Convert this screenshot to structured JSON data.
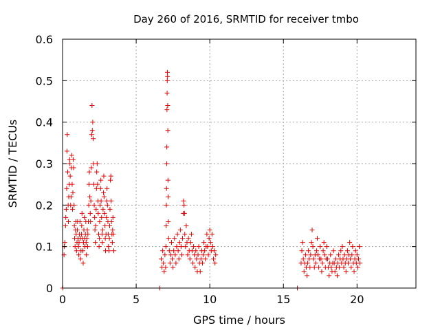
{
  "chart_data": {
    "type": "scatter",
    "title": "Day 260 of 2016, SRMTID for receiver tmbo",
    "xlabel": "GPS time / hours",
    "ylabel": "SRMTID / TECUs",
    "xlim": [
      0,
      24
    ],
    "ylim": [
      0,
      0.6
    ],
    "xticks": [
      0,
      5,
      10,
      15,
      20
    ],
    "yticks": [
      0,
      0.1,
      0.2,
      0.3,
      0.4,
      0.5,
      0.6
    ],
    "xtick_labels": [
      "0",
      "5",
      "10",
      "15",
      "20"
    ],
    "ytick_labels": [
      "0",
      "0.1",
      "0.2",
      "0.3",
      "0.4",
      "0.5",
      "0.6"
    ],
    "grid": true,
    "marker": "+",
    "series": [
      {
        "name": "SRMTID",
        "color": "#e00000",
        "points": [
          [
            0.02,
            0.0
          ],
          [
            6.6,
            0.0
          ],
          [
            15.95,
            0.0
          ],
          [
            0.1,
            0.08
          ],
          [
            0.12,
            0.1
          ],
          [
            0.15,
            0.11
          ],
          [
            0.2,
            0.15
          ],
          [
            0.22,
            0.17
          ],
          [
            0.25,
            0.19
          ],
          [
            0.28,
            0.24
          ],
          [
            0.3,
            0.33
          ],
          [
            0.32,
            0.37
          ],
          [
            0.35,
            0.28
          ],
          [
            0.38,
            0.2
          ],
          [
            0.4,
            0.16
          ],
          [
            0.42,
            0.22
          ],
          [
            0.45,
            0.25
          ],
          [
            0.48,
            0.31
          ],
          [
            0.5,
            0.3
          ],
          [
            0.52,
            0.27
          ],
          [
            0.55,
            0.2
          ],
          [
            0.58,
            0.22
          ],
          [
            0.6,
            0.29
          ],
          [
            0.62,
            0.32
          ],
          [
            0.65,
            0.25
          ],
          [
            0.68,
            0.19
          ],
          [
            0.7,
            0.23
          ],
          [
            0.72,
            0.31
          ],
          [
            0.75,
            0.29
          ],
          [
            0.78,
            0.2
          ],
          [
            0.8,
            0.15
          ],
          [
            0.82,
            0.12
          ],
          [
            0.85,
            0.1
          ],
          [
            0.88,
            0.14
          ],
          [
            0.9,
            0.16
          ],
          [
            0.92,
            0.13
          ],
          [
            0.95,
            0.09
          ],
          [
            0.98,
            0.11
          ],
          [
            1.0,
            0.14
          ],
          [
            1.02,
            0.16
          ],
          [
            1.05,
            0.12
          ],
          [
            1.08,
            0.1
          ],
          [
            1.1,
            0.08
          ],
          [
            1.12,
            0.11
          ],
          [
            1.15,
            0.13
          ],
          [
            1.18,
            0.16
          ],
          [
            1.2,
            0.12
          ],
          [
            1.22,
            0.07
          ],
          [
            1.25,
            0.09
          ],
          [
            1.28,
            0.13
          ],
          [
            1.3,
            0.15
          ],
          [
            1.32,
            0.18
          ],
          [
            1.35,
            0.12
          ],
          [
            1.38,
            0.09
          ],
          [
            1.4,
            0.06
          ],
          [
            1.42,
            0.11
          ],
          [
            1.45,
            0.14
          ],
          [
            1.48,
            0.17
          ],
          [
            1.5,
            0.12
          ],
          [
            1.52,
            0.1
          ],
          [
            1.55,
            0.13
          ],
          [
            1.58,
            0.16
          ],
          [
            1.6,
            0.11
          ],
          [
            1.62,
            0.08
          ],
          [
            1.65,
            0.12
          ],
          [
            1.68,
            0.14
          ],
          [
            1.7,
            0.1
          ],
          [
            1.72,
            0.13
          ],
          [
            1.75,
            0.16
          ],
          [
            1.78,
            0.2
          ],
          [
            1.8,
            0.25
          ],
          [
            1.82,
            0.28
          ],
          [
            1.85,
            0.22
          ],
          [
            1.88,
            0.18
          ],
          [
            1.9,
            0.16
          ],
          [
            1.92,
            0.21
          ],
          [
            1.95,
            0.29
          ],
          [
            1.98,
            0.37
          ],
          [
            2.0,
            0.44
          ],
          [
            2.02,
            0.38
          ],
          [
            2.05,
            0.4
          ],
          [
            2.08,
            0.36
          ],
          [
            2.1,
            0.3
          ],
          [
            2.12,
            0.25
          ],
          [
            2.15,
            0.2
          ],
          [
            2.18,
            0.17
          ],
          [
            2.2,
            0.14
          ],
          [
            2.22,
            0.11
          ],
          [
            2.25,
            0.15
          ],
          [
            2.28,
            0.19
          ],
          [
            2.3,
            0.24
          ],
          [
            2.32,
            0.28
          ],
          [
            2.35,
            0.3
          ],
          [
            2.38,
            0.25
          ],
          [
            2.4,
            0.21
          ],
          [
            2.42,
            0.18
          ],
          [
            2.45,
            0.13
          ],
          [
            2.48,
            0.1
          ],
          [
            2.5,
            0.12
          ],
          [
            2.52,
            0.16
          ],
          [
            2.55,
            0.2
          ],
          [
            2.58,
            0.24
          ],
          [
            2.6,
            0.26
          ],
          [
            2.62,
            0.21
          ],
          [
            2.65,
            0.17
          ],
          [
            2.68,
            0.13
          ],
          [
            2.7,
            0.11
          ],
          [
            2.72,
            0.14
          ],
          [
            2.75,
            0.19
          ],
          [
            2.78,
            0.23
          ],
          [
            2.8,
            0.27
          ],
          [
            2.82,
            0.22
          ],
          [
            2.85,
            0.18
          ],
          [
            2.88,
            0.15
          ],
          [
            2.9,
            0.12
          ],
          [
            2.92,
            0.09
          ],
          [
            2.95,
            0.13
          ],
          [
            2.98,
            0.17
          ],
          [
            3.0,
            0.21
          ],
          [
            3.02,
            0.24
          ],
          [
            3.05,
            0.2
          ],
          [
            3.08,
            0.16
          ],
          [
            3.1,
            0.13
          ],
          [
            3.12,
            0.1
          ],
          [
            3.15,
            0.09
          ],
          [
            3.18,
            0.12
          ],
          [
            3.2,
            0.15
          ],
          [
            3.22,
            0.19
          ],
          [
            3.25,
            0.26
          ],
          [
            3.28,
            0.27
          ],
          [
            3.3,
            0.21
          ],
          [
            3.32,
            0.16
          ],
          [
            3.35,
            0.13
          ],
          [
            3.38,
            0.11
          ],
          [
            3.4,
            0.14
          ],
          [
            3.42,
            0.17
          ],
          [
            3.45,
            0.13
          ],
          [
            3.48,
            0.09
          ],
          [
            6.7,
            0.07
          ],
          [
            6.75,
            0.05
          ],
          [
            6.8,
            0.09
          ],
          [
            6.85,
            0.06
          ],
          [
            6.9,
            0.04
          ],
          [
            6.95,
            0.08
          ],
          [
            7.0,
            0.05
          ],
          [
            7.02,
            0.1
          ],
          [
            7.04,
            0.15
          ],
          [
            7.05,
            0.2
          ],
          [
            7.06,
            0.24
          ],
          [
            7.07,
            0.3
          ],
          [
            7.08,
            0.34
          ],
          [
            7.09,
            0.43
          ],
          [
            7.1,
            0.47
          ],
          [
            7.11,
            0.5
          ],
          [
            7.12,
            0.52
          ],
          [
            7.13,
            0.51
          ],
          [
            7.14,
            0.44
          ],
          [
            7.15,
            0.38
          ],
          [
            7.16,
            0.26
          ],
          [
            7.17,
            0.22
          ],
          [
            7.18,
            0.16
          ],
          [
            7.2,
            0.12
          ],
          [
            7.25,
            0.09
          ],
          [
            7.3,
            0.06
          ],
          [
            7.35,
            0.08
          ],
          [
            7.4,
            0.11
          ],
          [
            7.45,
            0.07
          ],
          [
            7.5,
            0.05
          ],
          [
            7.55,
            0.09
          ],
          [
            7.6,
            0.12
          ],
          [
            7.65,
            0.08
          ],
          [
            7.7,
            0.06
          ],
          [
            7.75,
            0.1
          ],
          [
            7.8,
            0.13
          ],
          [
            7.85,
            0.09
          ],
          [
            7.9,
            0.07
          ],
          [
            7.95,
            0.11
          ],
          [
            8.0,
            0.14
          ],
          [
            8.05,
            0.1
          ],
          [
            8.1,
            0.08
          ],
          [
            8.15,
            0.12
          ],
          [
            8.2,
            0.18
          ],
          [
            8.22,
            0.21
          ],
          [
            8.25,
            0.2
          ],
          [
            8.28,
            0.18
          ],
          [
            8.3,
            0.13
          ],
          [
            8.35,
            0.1
          ],
          [
            8.4,
            0.15
          ],
          [
            8.45,
            0.11
          ],
          [
            8.5,
            0.08
          ],
          [
            8.55,
            0.12
          ],
          [
            8.6,
            0.09
          ],
          [
            8.65,
            0.07
          ],
          [
            8.7,
            0.11
          ],
          [
            8.75,
            0.13
          ],
          [
            8.8,
            0.09
          ],
          [
            8.85,
            0.06
          ],
          [
            8.9,
            0.1
          ],
          [
            8.95,
            0.08
          ],
          [
            9.0,
            0.05
          ],
          [
            9.05,
            0.09
          ],
          [
            9.1,
            0.07
          ],
          [
            9.15,
            0.04
          ],
          [
            9.2,
            0.08
          ],
          [
            9.25,
            0.1
          ],
          [
            9.3,
            0.06
          ],
          [
            9.35,
            0.04
          ],
          [
            9.4,
            0.07
          ],
          [
            9.45,
            0.09
          ],
          [
            9.5,
            0.06
          ],
          [
            9.55,
            0.08
          ],
          [
            9.6,
            0.11
          ],
          [
            9.65,
            0.09
          ],
          [
            9.7,
            0.07
          ],
          [
            9.75,
            0.1
          ],
          [
            9.8,
            0.13
          ],
          [
            9.85,
            0.1
          ],
          [
            9.9,
            0.08
          ],
          [
            9.95,
            0.12
          ],
          [
            10.0,
            0.14
          ],
          [
            10.05,
            0.11
          ],
          [
            10.1,
            0.09
          ],
          [
            10.15,
            0.13
          ],
          [
            10.2,
            0.1
          ],
          [
            10.25,
            0.07
          ],
          [
            10.3,
            0.09
          ],
          [
            10.35,
            0.06
          ],
          [
            10.4,
            0.08
          ],
          [
            16.2,
            0.06
          ],
          [
            16.25,
            0.09
          ],
          [
            16.3,
            0.11
          ],
          [
            16.35,
            0.07
          ],
          [
            16.4,
            0.04
          ],
          [
            16.45,
            0.06
          ],
          [
            16.5,
            0.08
          ],
          [
            16.55,
            0.05
          ],
          [
            16.6,
            0.03
          ],
          [
            16.65,
            0.06
          ],
          [
            16.7,
            0.09
          ],
          [
            16.75,
            0.07
          ],
          [
            16.8,
            0.05
          ],
          [
            16.85,
            0.08
          ],
          [
            16.9,
            0.11
          ],
          [
            16.95,
            0.14
          ],
          [
            17.0,
            0.1
          ],
          [
            17.05,
            0.07
          ],
          [
            17.1,
            0.05
          ],
          [
            17.15,
            0.08
          ],
          [
            17.2,
            0.06
          ],
          [
            17.25,
            0.09
          ],
          [
            17.3,
            0.12
          ],
          [
            17.35,
            0.08
          ],
          [
            17.4,
            0.05
          ],
          [
            17.45,
            0.07
          ],
          [
            17.5,
            0.1
          ],
          [
            17.55,
            0.07
          ],
          [
            17.6,
            0.04
          ],
          [
            17.65,
            0.06
          ],
          [
            17.7,
            0.09
          ],
          [
            17.75,
            0.11
          ],
          [
            17.8,
            0.08
          ],
          [
            17.85,
            0.05
          ],
          [
            17.9,
            0.07
          ],
          [
            17.95,
            0.1
          ],
          [
            18.0,
            0.07
          ],
          [
            18.05,
            0.05
          ],
          [
            18.1,
            0.03
          ],
          [
            18.15,
            0.06
          ],
          [
            18.2,
            0.08
          ],
          [
            18.25,
            0.05
          ],
          [
            18.3,
            0.04
          ],
          [
            18.35,
            0.06
          ],
          [
            18.4,
            0.09
          ],
          [
            18.45,
            0.06
          ],
          [
            18.5,
            0.04
          ],
          [
            18.55,
            0.07
          ],
          [
            18.6,
            0.05
          ],
          [
            18.65,
            0.03
          ],
          [
            18.7,
            0.06
          ],
          [
            18.75,
            0.08
          ],
          [
            18.8,
            0.05
          ],
          [
            18.85,
            0.07
          ],
          [
            18.9,
            0.09
          ],
          [
            18.95,
            0.06
          ],
          [
            19.0,
            0.1
          ],
          [
            19.05,
            0.07
          ],
          [
            19.1,
            0.05
          ],
          [
            19.15,
            0.08
          ],
          [
            19.2,
            0.06
          ],
          [
            19.25,
            0.04
          ],
          [
            19.3,
            0.07
          ],
          [
            19.35,
            0.09
          ],
          [
            19.4,
            0.06
          ],
          [
            19.45,
            0.08
          ],
          [
            19.5,
            0.11
          ],
          [
            19.55,
            0.07
          ],
          [
            19.6,
            0.05
          ],
          [
            19.65,
            0.08
          ],
          [
            19.7,
            0.1
          ],
          [
            19.75,
            0.06
          ],
          [
            19.8,
            0.04
          ],
          [
            19.85,
            0.07
          ],
          [
            19.9,
            0.09
          ],
          [
            19.95,
            0.06
          ],
          [
            20.0,
            0.08
          ],
          [
            20.05,
            0.05
          ],
          [
            20.1,
            0.07
          ],
          [
            20.15,
            0.1
          ],
          [
            20.2,
            0.06
          ]
        ]
      }
    ]
  }
}
